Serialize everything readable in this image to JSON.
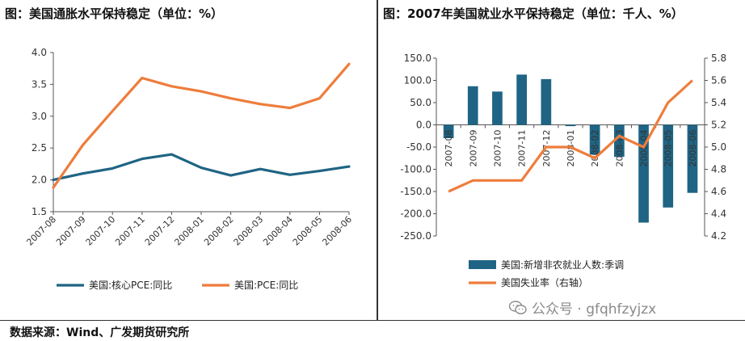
{
  "source_note": "数据来源：Wind、广发期货研究所",
  "watermark": {
    "text": "公众号 · gfqhfzyjzx",
    "icon": "wechat-icon"
  },
  "chart_data": [
    {
      "type": "line",
      "title": "图：美国通胀水平保持稳定（单位：%）",
      "categories": [
        "2007-08",
        "2007-09",
        "2007-10",
        "2007-11",
        "2007-12",
        "2008-01",
        "2008-02",
        "2008-03",
        "2008-04",
        "2008-05",
        "2008-06"
      ],
      "series": [
        {
          "name": "美国:核心PCE:同比",
          "color": "#1f6484",
          "values": [
            2.0,
            2.1,
            2.18,
            2.33,
            2.4,
            2.19,
            2.07,
            2.17,
            2.08,
            2.14,
            2.21
          ]
        },
        {
          "name": "美国:PCE:同比",
          "color": "#ee7d3c",
          "values": [
            1.88,
            2.55,
            3.08,
            3.6,
            3.47,
            3.39,
            3.28,
            3.19,
            3.13,
            3.28,
            3.82
          ]
        }
      ],
      "ylim": [
        1.5,
        4.0
      ],
      "yticks": [
        "1.5",
        "2.0",
        "2.5",
        "3.0",
        "3.5",
        "4.0"
      ],
      "grid": false,
      "legend": "bottom"
    },
    {
      "type": "bar",
      "title": "图：2007年美国就业水平保持稳定（单位：千人、%）",
      "categories": [
        "2007-08",
        "2007-09",
        "2007-10",
        "2007-11",
        "2007-12",
        "2008-01",
        "2008-02",
        "2008-03",
        "2008-04",
        "2008-05",
        "2008-06"
      ],
      "xtick_labels": [
        "2007-08",
        "2007-09",
        "2007-10",
        "2007-11",
        "2007-12",
        "2008-01",
        "2008-02",
        "2008-03",
        "2008-04",
        "2008-05",
        "2008-06"
      ],
      "series": [
        {
          "name": "美国:新增非农就业人数:季调",
          "type": "bar",
          "axis": "left",
          "color": "#1f6484",
          "values": [
            -30,
            87,
            75,
            113,
            103,
            -3,
            -67,
            -72,
            -220,
            -186,
            -153
          ]
        },
        {
          "name": "美国失业率（右轴）",
          "type": "line",
          "axis": "right",
          "color": "#ee7d3c",
          "values": [
            4.6,
            4.7,
            4.7,
            4.7,
            5.0,
            5.0,
            4.9,
            5.1,
            5.0,
            5.4,
            5.6
          ]
        }
      ],
      "ylim_left": [
        -250,
        150
      ],
      "ylim_right": [
        4.2,
        5.8
      ],
      "yticks_left": [
        "150.0",
        "100.0",
        "50.0",
        "0.0",
        "-50.0",
        "-100.0",
        "-150.0",
        "-200.0",
        "-250.0"
      ],
      "yticks_right": [
        "5.8",
        "5.6",
        "5.4",
        "5.2",
        "5.0",
        "4.8",
        "4.6",
        "4.4",
        "4.2"
      ],
      "grid": false,
      "legend": "bottom"
    }
  ]
}
